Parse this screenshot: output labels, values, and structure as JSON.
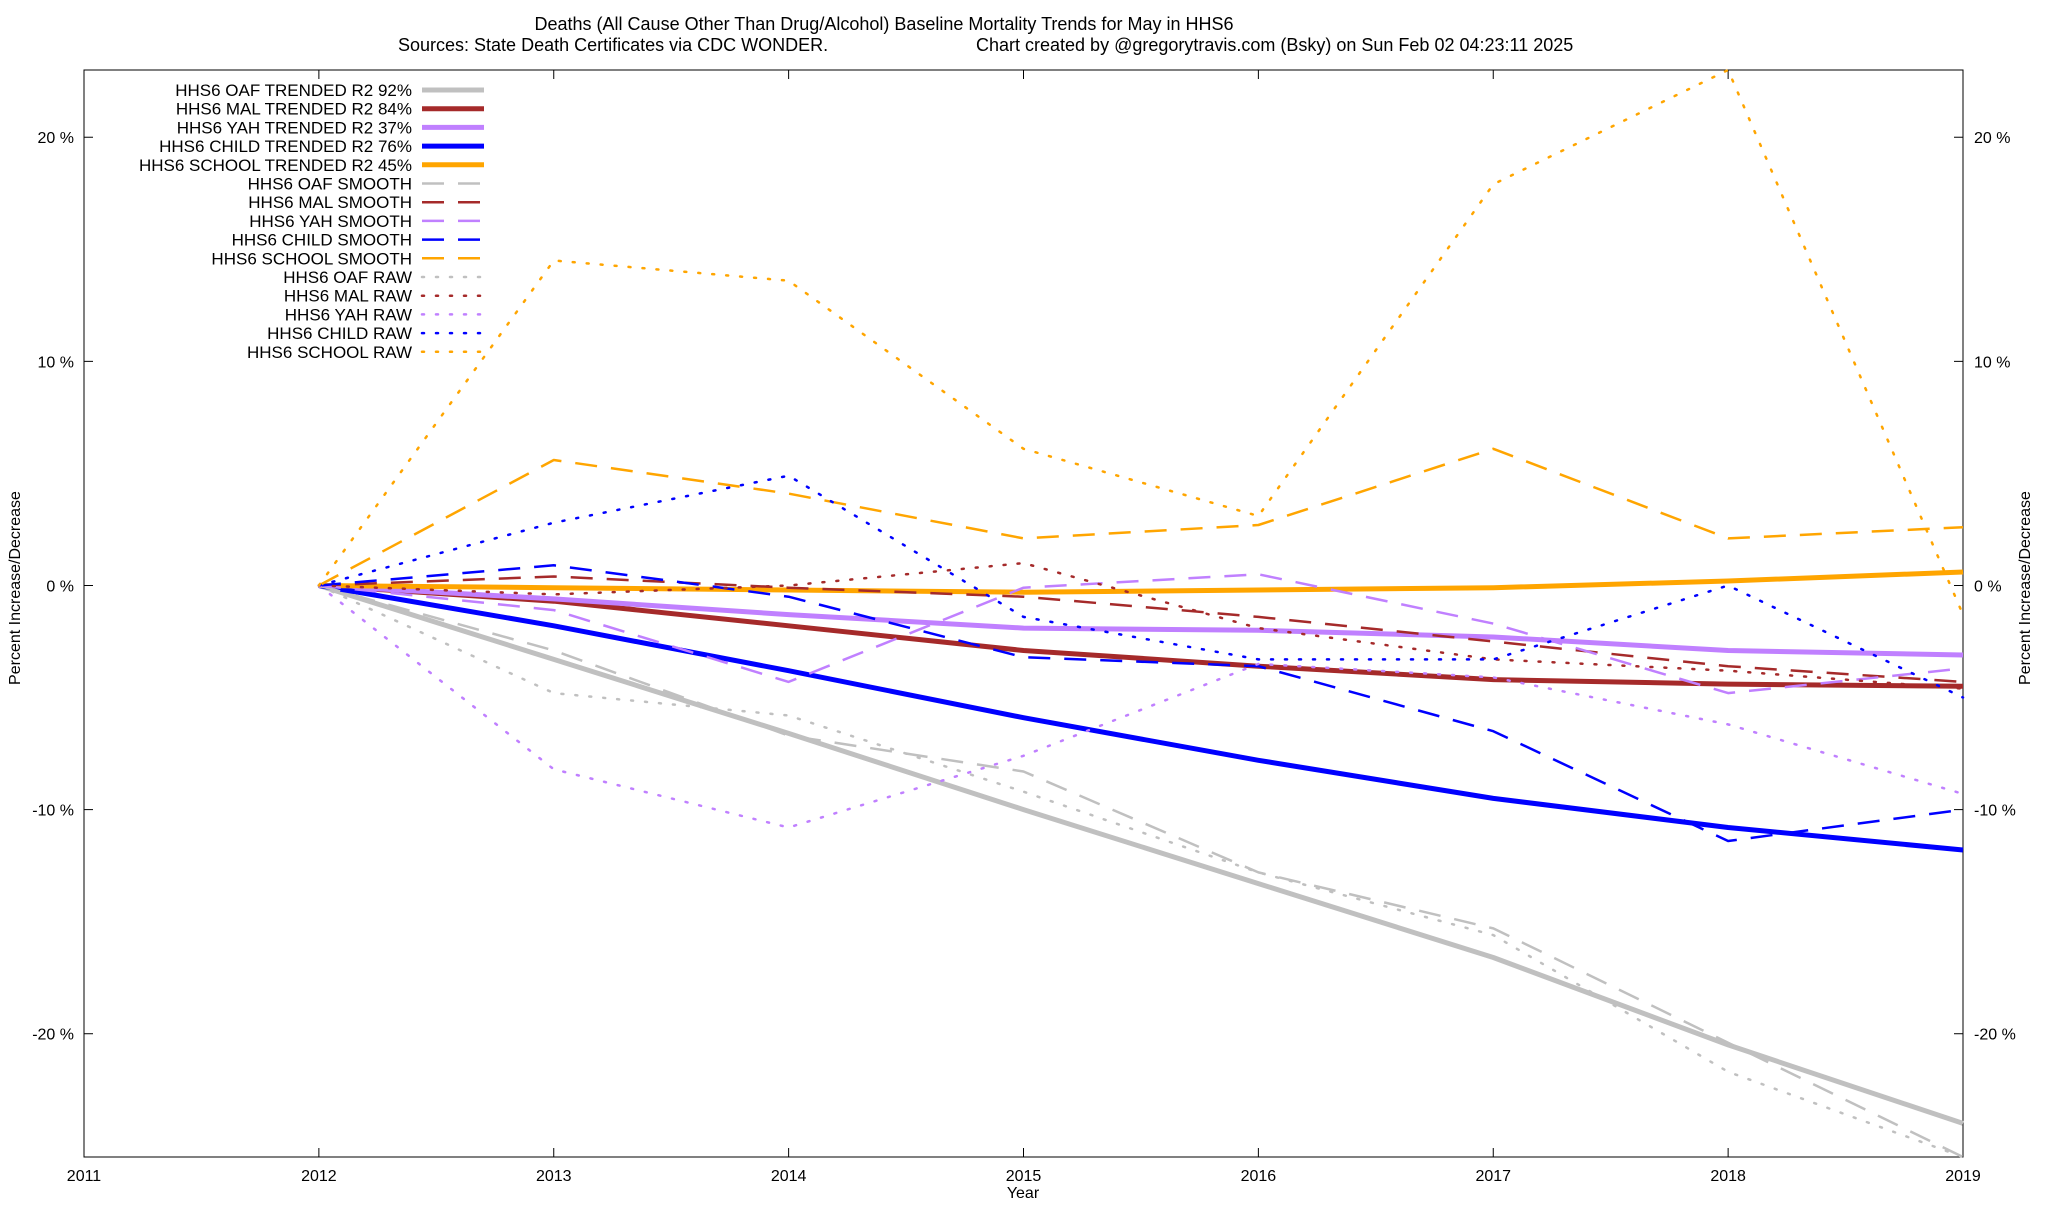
{
  "chart_data": {
    "type": "line",
    "title": "Deaths (All Cause Other Than Drug/Alcohol)  Baseline Mortality Trends for May in HHS6",
    "subtitle_left": "Sources: State Death Certificates via CDC WONDER.",
    "subtitle_right": "Chart created by @gregorytravis.com (Bsky) on Sun Feb 02 04:23:11 2025",
    "xlabel": "Year",
    "ylabel": "Percent Increase/Decrease",
    "y2label": "Percent Increase/Decrease",
    "xlim": [
      2011,
      2019
    ],
    "ylim": [
      -25.5,
      23
    ],
    "x_ticks": [
      "2011",
      "2012",
      "2013",
      "2014",
      "2015",
      "2016",
      "2017",
      "2018",
      "2019"
    ],
    "y_ticks": [
      {
        "value": 20,
        "label": "20 %"
      },
      {
        "value": 10,
        "label": "10 %"
      },
      {
        "value": 0,
        "label": "0 %"
      },
      {
        "value": -10,
        "label": "-10 %"
      },
      {
        "value": -20,
        "label": "-20 %"
      }
    ],
    "grid": false,
    "legend_position": "top-left",
    "x": [
      2012,
      2013,
      2014,
      2015,
      2016,
      2017,
      2018,
      2019
    ],
    "series": [
      {
        "name": "HHS6 OAF TRENDED R2  92%",
        "color": "#c0c0c0",
        "style": "solid",
        "values": [
          0,
          -3.3,
          -6.6,
          -10.0,
          -13.3,
          -16.6,
          -20.5,
          -24.0
        ]
      },
      {
        "name": "HHS6 MAL TRENDED R2  84%",
        "color": "#a52a2a",
        "style": "solid",
        "values": [
          0,
          -0.7,
          -1.8,
          -2.9,
          -3.6,
          -4.2,
          -4.4,
          -4.5
        ]
      },
      {
        "name": "HHS6 YAH TRENDED R2  37%",
        "color": "#c080ff",
        "style": "solid",
        "values": [
          0,
          -0.6,
          -1.3,
          -1.9,
          -2.0,
          -2.3,
          -2.9,
          -3.1
        ]
      },
      {
        "name": "HHS6 CHILD TRENDED R2  76%",
        "color": "#0000ff",
        "style": "solid",
        "values": [
          0,
          -1.8,
          -3.8,
          -5.9,
          -7.8,
          -9.5,
          -10.8,
          -11.8
        ]
      },
      {
        "name": "HHS6 SCHOOL TRENDED R2  45%",
        "color": "#ffa500",
        "style": "solid",
        "values": [
          0,
          -0.1,
          -0.2,
          -0.3,
          -0.2,
          -0.1,
          0.2,
          0.6
        ]
      },
      {
        "name": "HHS6 OAF SMOOTH",
        "color": "#c0c0c0",
        "style": "dashed",
        "values": [
          0,
          -2.9,
          -6.7,
          -8.3,
          -12.8,
          -15.3,
          -20.4,
          -25.5
        ]
      },
      {
        "name": "HHS6 MAL SMOOTH",
        "color": "#a52a2a",
        "style": "dashed",
        "values": [
          0,
          0.4,
          -0.1,
          -0.5,
          -1.4,
          -2.5,
          -3.6,
          -4.3
        ]
      },
      {
        "name": "HHS6 YAH SMOOTH",
        "color": "#c080ff",
        "style": "dashed",
        "values": [
          0,
          -1.1,
          -4.3,
          -0.1,
          0.5,
          -1.7,
          -4.8,
          -3.7
        ]
      },
      {
        "name": "HHS6 CHILD SMOOTH",
        "color": "#0000ff",
        "style": "dashed",
        "values": [
          0,
          0.9,
          -0.5,
          -3.2,
          -3.6,
          -6.5,
          -11.4,
          -10.0
        ]
      },
      {
        "name": "HHS6 SCHOOL SMOOTH",
        "color": "#ffa500",
        "style": "dashed",
        "values": [
          0,
          5.6,
          4.1,
          2.1,
          2.7,
          6.1,
          2.1,
          2.6
        ]
      },
      {
        "name": "HHS6 OAF RAW",
        "color": "#c0c0c0",
        "style": "dotted",
        "values": [
          0,
          -4.8,
          -5.8,
          -9.2,
          -12.8,
          -15.6,
          -21.7,
          -25.5
        ]
      },
      {
        "name": "HHS6 MAL RAW",
        "color": "#a52a2a",
        "style": "dotted",
        "values": [
          0,
          -0.4,
          0.0,
          1.0,
          -1.9,
          -3.3,
          -3.8,
          -4.6
        ]
      },
      {
        "name": "HHS6 YAH RAW",
        "color": "#c080ff",
        "style": "dotted",
        "values": [
          0,
          -8.2,
          -10.8,
          -7.6,
          -3.5,
          -4.1,
          -6.2,
          -9.3
        ]
      },
      {
        "name": "HHS6 CHILD RAW",
        "color": "#0000ff",
        "style": "dotted",
        "values": [
          0,
          2.8,
          4.9,
          -1.4,
          -3.3,
          -3.3,
          0.0,
          -5.0
        ]
      },
      {
        "name": "HHS6 SCHOOL RAW",
        "color": "#ffa500",
        "style": "dotted",
        "values": [
          0,
          14.5,
          13.6,
          6.1,
          3.1,
          17.9,
          23.0,
          -1.3
        ]
      }
    ]
  }
}
